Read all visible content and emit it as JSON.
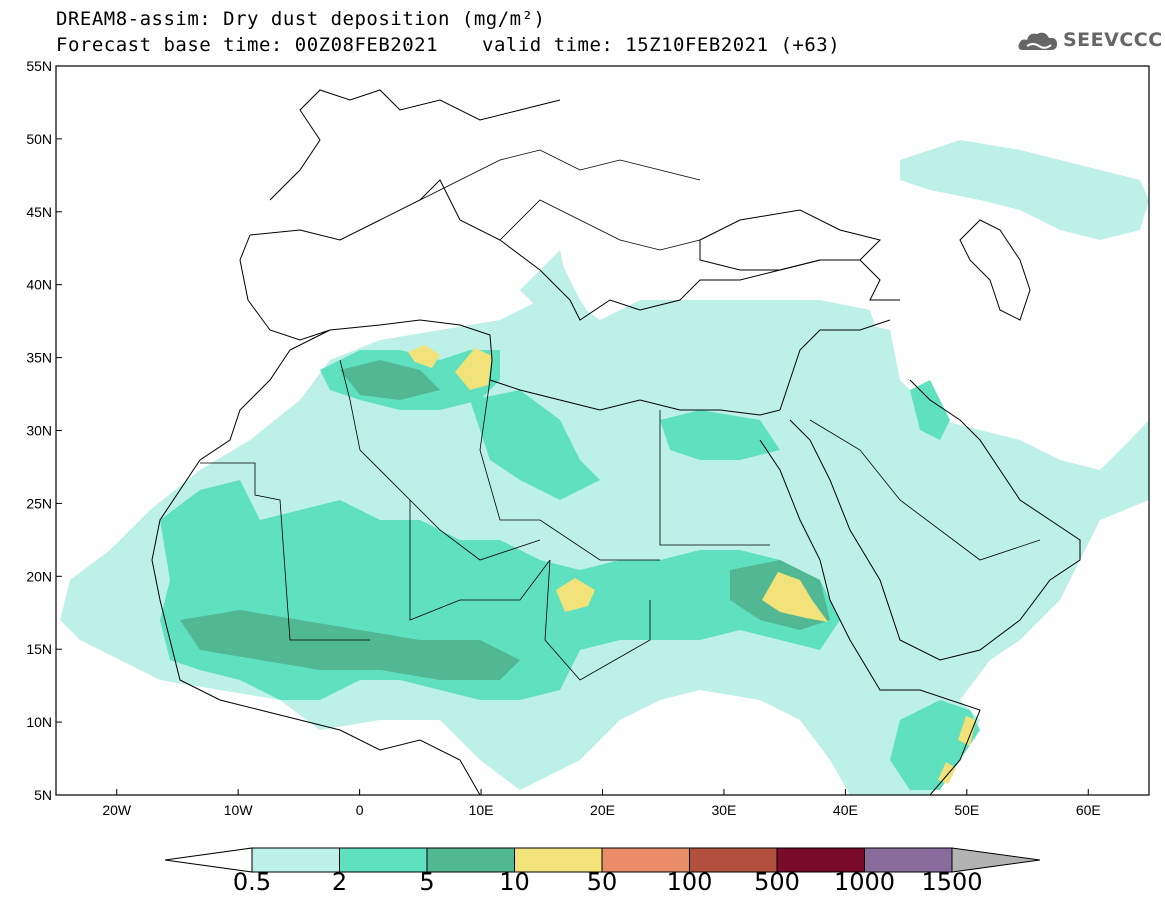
{
  "title": {
    "line1": "DREAM8-assim: Dry dust deposition (mg/m²)",
    "line2_left": "Forecast base time: 00Z08FEB2021",
    "line2_right": "valid time: 15Z10FEB2021 (+63)"
  },
  "logo": {
    "text": "SEEVCCC",
    "icon": "cloud-logo-icon"
  },
  "chart_data": {
    "type": "heatmap",
    "title": "DREAM8-assim: Dry dust deposition (mg/m²)",
    "units": "mg/m²",
    "lat_range": [
      5,
      55
    ],
    "lon_range": [
      -25,
      65
    ],
    "lat_ticks": [
      "5N",
      "10N",
      "15N",
      "20N",
      "25N",
      "30N",
      "35N",
      "40N",
      "45N",
      "50N",
      "55N"
    ],
    "lon_ticks": [
      "20W",
      "10W",
      "0",
      "10E",
      "20E",
      "30E",
      "40E",
      "50E",
      "60E"
    ],
    "lon_tick_values": [
      -20,
      -10,
      0,
      10,
      20,
      30,
      40,
      50,
      60
    ],
    "lat_tick_values": [
      5,
      10,
      15,
      20,
      25,
      30,
      35,
      40,
      45,
      50,
      55
    ],
    "colorbar": {
      "levels": [
        "0.5",
        "2",
        "5",
        "10",
        "50",
        "100",
        "500",
        "1000",
        "1500"
      ],
      "colors": [
        "#bdf0e6",
        "#5fe0bf",
        "#52b893",
        "#f2e27a",
        "#e98c68",
        "#b0503e",
        "#7a0a2a",
        "#8a6b9e",
        "#b3b3b3"
      ]
    }
  }
}
